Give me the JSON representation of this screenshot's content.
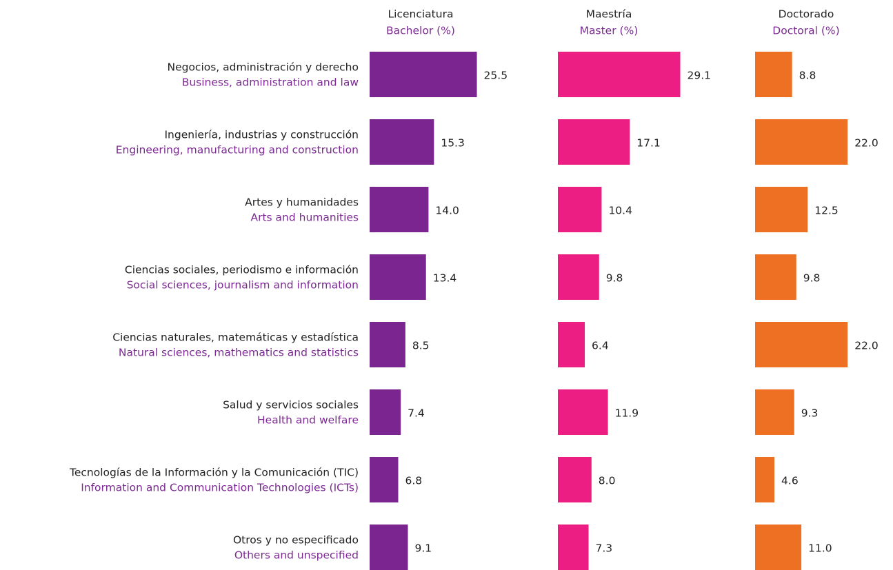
{
  "chart_data": {
    "type": "bar",
    "categories": [
      "Negocios, administración y derecho",
      "Ingeniería, industrias y construcción",
      "Artes y humanidades",
      "Ciencias sociales, periodismo e información",
      "Ciencias naturales, matemáticas y estadística",
      "Salud y servicios sociales",
      "Tecnologías de la Información y la Comunicación (TIC)",
      "Otros y no especificado"
    ],
    "categories_en": [
      "Business, administration and law",
      "Engineering, manufacturing and construction",
      "Arts and humanities",
      "Social sciences, journalism and information",
      "Natural sciences, mathematics and statistics",
      "Health and welfare",
      "Information and Communication Technologies (ICTs)",
      "Others and unspecified"
    ],
    "series": [
      {
        "name": "Licenciatura",
        "subtitle": "Bachelor (%)",
        "color": "#7b2690",
        "values": [
          25.5,
          15.3,
          14.0,
          13.4,
          8.5,
          7.4,
          6.8,
          9.1
        ],
        "value_labels": [
          "25.5",
          "15.3",
          "14.0",
          "13.4",
          "8.5",
          "7.4",
          "6.8",
          "9.1"
        ]
      },
      {
        "name": "Maestría",
        "subtitle": "Master (%)",
        "color": "#ec1e84",
        "values": [
          29.1,
          17.1,
          10.4,
          9.8,
          6.4,
          11.9,
          8.0,
          7.3
        ],
        "value_labels": [
          "29.1",
          "17.1",
          "10.4",
          "9.8",
          "6.4",
          "11.9",
          "8.0",
          "7.3"
        ]
      },
      {
        "name": "Doctorado",
        "subtitle": "Doctoral (%)",
        "color": "#ee7023",
        "values": [
          8.8,
          22.0,
          12.5,
          9.8,
          22.0,
          9.3,
          4.6,
          11.0
        ],
        "value_labels": [
          "8.8",
          "22.0",
          "12.5",
          "9.8",
          "22.0",
          "9.3",
          "4.6",
          "11.0"
        ]
      }
    ]
  }
}
